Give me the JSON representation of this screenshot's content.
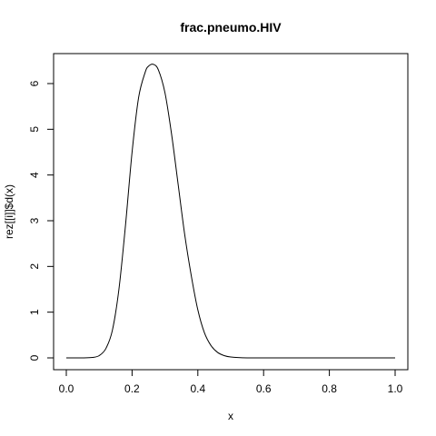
{
  "chart_data": {
    "type": "line",
    "title": "frac.pneumo.HIV",
    "xlabel": "x",
    "ylabel": "rez[[i]]$d(x)",
    "xlim": [
      0.0,
      1.0
    ],
    "ylim": [
      0,
      6.5
    ],
    "x_ticks": [
      "0.0",
      "0.2",
      "0.4",
      "0.6",
      "0.8",
      "1.0"
    ],
    "y_ticks": [
      "0",
      "1",
      "2",
      "3",
      "4",
      "5",
      "6"
    ],
    "grid": false,
    "series": [
      {
        "x": [
          0.0,
          0.05,
          0.08,
          0.1,
          0.12,
          0.14,
          0.16,
          0.18,
          0.2,
          0.22,
          0.24,
          0.25,
          0.265,
          0.28,
          0.3,
          0.32,
          0.34,
          0.36,
          0.38,
          0.4,
          0.42,
          0.44,
          0.46,
          0.48,
          0.5,
          0.55,
          0.6,
          0.7,
          0.8,
          0.9,
          1.0
        ],
        "y": [
          0.0,
          0.0,
          0.01,
          0.05,
          0.2,
          0.6,
          1.5,
          2.9,
          4.5,
          5.7,
          6.25,
          6.38,
          6.42,
          6.3,
          5.8,
          4.9,
          3.8,
          2.7,
          1.8,
          1.05,
          0.55,
          0.27,
          0.12,
          0.05,
          0.02,
          0.0,
          0.0,
          0.0,
          0.0,
          0.0,
          0.0
        ]
      }
    ]
  }
}
